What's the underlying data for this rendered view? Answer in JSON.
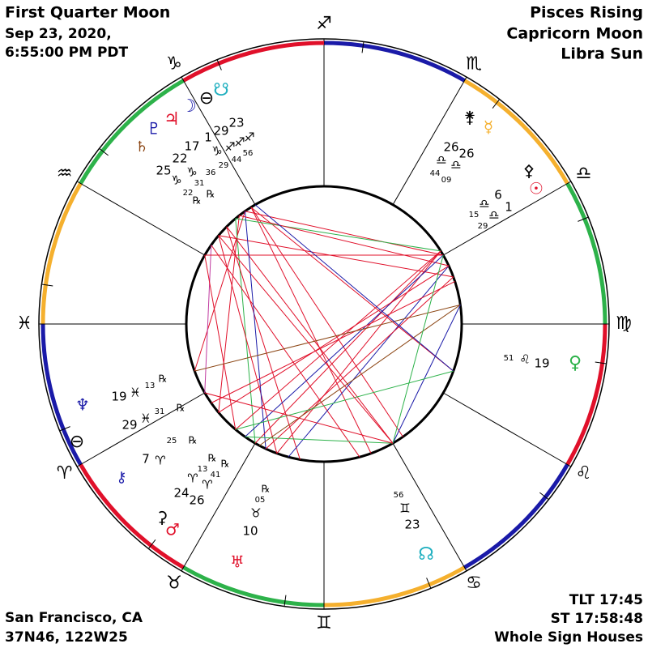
{
  "header": {
    "title": "First Quarter Moon",
    "date": "Sep 23, 2020,",
    "time": "6:55:00 PM PDT"
  },
  "summary": [
    "Pisces Rising",
    "Capricorn Moon",
    "Libra Sun"
  ],
  "location": [
    "San Francisco, CA",
    "37N46, 122W25"
  ],
  "info": [
    "TLT 17:45",
    "ST 17:58:48",
    "Whole Sign Houses"
  ],
  "signs": [
    "♐",
    "♏",
    "♎",
    "♍",
    "♌",
    "♋",
    "♊",
    "♉",
    "♈",
    "♓",
    "♒",
    "♑"
  ],
  "wheel_labels": [
    "⊖",
    "☋",
    "☽",
    "♃",
    "♇",
    "♄",
    "29",
    "23",
    "1",
    "17",
    "22",
    "25",
    "♑",
    "♐",
    "♐",
    "♐",
    "56",
    "44",
    "29",
    "36",
    "31",
    "22",
    "℞",
    "℞",
    "♑",
    "♑",
    "⚵",
    "☿",
    "26",
    "26",
    "44",
    "♎",
    "♎",
    "09",
    "⚴",
    "☉",
    "♎",
    "6",
    "♎",
    "1",
    "15",
    "29",
    "51",
    "♌",
    "19",
    "♀",
    "♆",
    "19",
    "♓",
    "13",
    "℞",
    "29",
    "♓",
    "31",
    "℞",
    "⊖",
    "7",
    "♈",
    "25",
    "℞",
    "⚷",
    "℞",
    "℞",
    "13",
    "41",
    "♈",
    "♈",
    "24",
    "26",
    "⚳",
    "♂",
    "℞",
    "05",
    "♉",
    "10",
    "♅",
    "56",
    "♊",
    "23",
    "☊"
  ]
}
